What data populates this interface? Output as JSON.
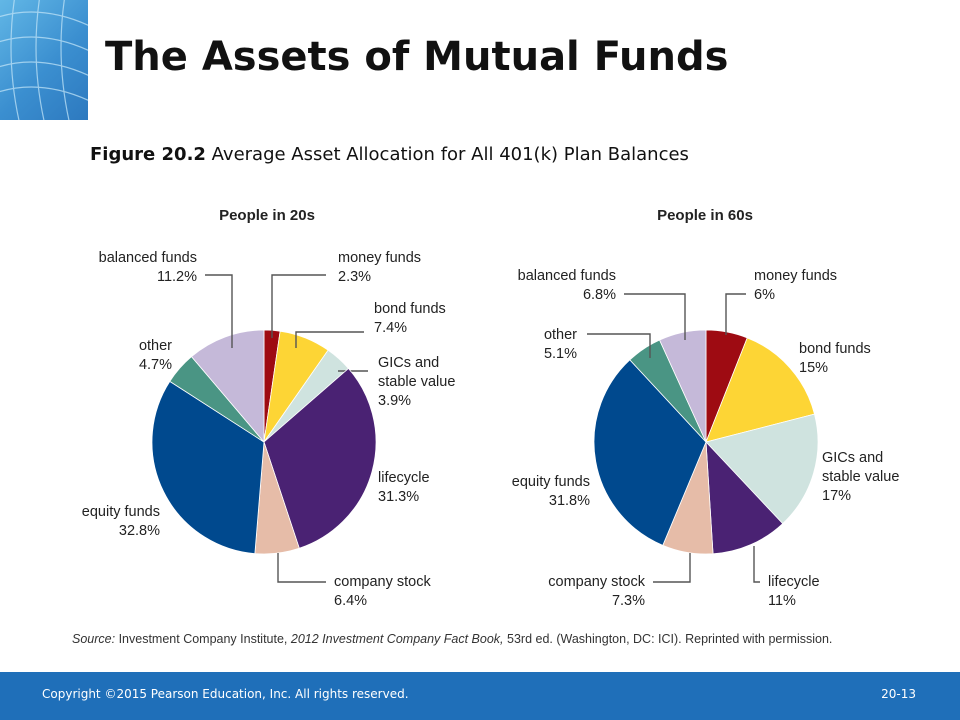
{
  "slide": {
    "title": "The Assets of Mutual Funds",
    "figure_number": "Figure 20.2",
    "figure_caption": "Average Asset Allocation for All 401(k) Plan Balances",
    "source_prefix": "Source:",
    "source_text": "Investment Company Institute,",
    "source_italic": "2012 Investment Company Fact Book,",
    "source_rest": "53rd ed. (Washington, DC: ICI). Reprinted with permission.",
    "copyright": "Copyright ©2015 Pearson Education, Inc. All rights reserved.",
    "page_number": "20-13"
  },
  "colors": {
    "money funds": "#9e0b12",
    "bond funds": "#fdd535",
    "GICs and stable value": "#cfe3df",
    "lifecycle": "#4a2273",
    "company stock": "#e6bca8",
    "equity funds": "#00498e",
    "other": "#4a9584",
    "balanced funds": "#c5b9d9",
    "footer": "#1f6fb9"
  },
  "chart_data": [
    {
      "type": "pie",
      "title": "People in 20s",
      "slices": [
        {
          "label": "money funds",
          "value": 2.3,
          "display": "2.3%"
        },
        {
          "label": "bond funds",
          "value": 7.4,
          "display": "7.4%"
        },
        {
          "label": "GICs and stable value",
          "value": 3.9,
          "display": "3.9%"
        },
        {
          "label": "lifecycle",
          "value": 31.3,
          "display": "31.3%"
        },
        {
          "label": "company stock",
          "value": 6.4,
          "display": "6.4%"
        },
        {
          "label": "equity funds",
          "value": 32.8,
          "display": "32.8%"
        },
        {
          "label": "other",
          "value": 4.7,
          "display": "4.7%"
        },
        {
          "label": "balanced funds",
          "value": 11.2,
          "display": "11.2%"
        }
      ]
    },
    {
      "type": "pie",
      "title": "People in 60s",
      "slices": [
        {
          "label": "money funds",
          "value": 6,
          "display": "6%"
        },
        {
          "label": "bond funds",
          "value": 15,
          "display": "15%"
        },
        {
          "label": "GICs and stable value",
          "value": 17,
          "display": "17%"
        },
        {
          "label": "lifecycle",
          "value": 11,
          "display": "11%"
        },
        {
          "label": "company stock",
          "value": 7.3,
          "display": "7.3%"
        },
        {
          "label": "equity funds",
          "value": 31.8,
          "display": "31.8%"
        },
        {
          "label": "other",
          "value": 5.1,
          "display": "5.1%"
        },
        {
          "label": "balanced funds",
          "value": 6.8,
          "display": "6.8%"
        }
      ]
    }
  ]
}
